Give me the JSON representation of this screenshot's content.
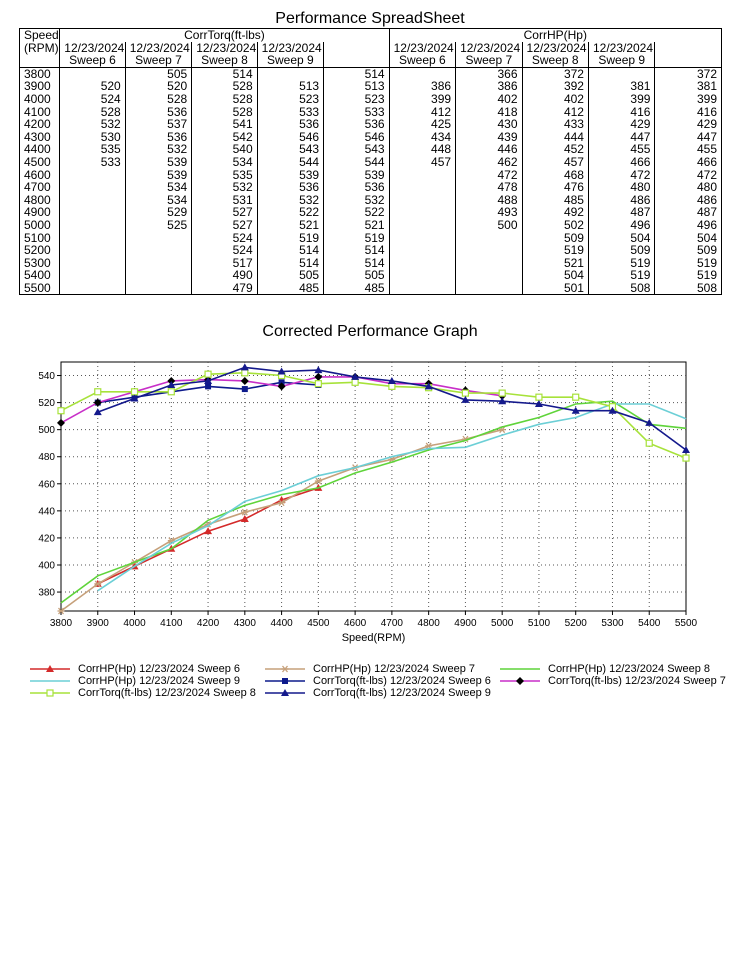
{
  "sheet": {
    "title": "Performance SpreadSheet",
    "speed_label": "Speed",
    "rpm_label": "(RPM)",
    "torque_group": "CorrTorq(ft-lbs)",
    "hp_group": "CorrHP(Hp)",
    "date": "12/23/2024",
    "sweeps": [
      "Sweep 6",
      "Sweep 7",
      "Sweep 8",
      "Sweep 9"
    ],
    "rows": [
      [
        "3800",
        "",
        "505",
        "514",
        "",
        "514",
        "",
        "366",
        "372",
        "",
        "372"
      ],
      [
        "3900",
        "520",
        "520",
        "528",
        "513",
        "513",
        "386",
        "386",
        "392",
        "381",
        "381"
      ],
      [
        "4000",
        "524",
        "528",
        "528",
        "523",
        "523",
        "399",
        "402",
        "402",
        "399",
        "399"
      ],
      [
        "4100",
        "528",
        "536",
        "528",
        "533",
        "533",
        "412",
        "418",
        "412",
        "416",
        "416"
      ],
      [
        "4200",
        "532",
        "537",
        "541",
        "536",
        "536",
        "425",
        "430",
        "433",
        "429",
        "429"
      ],
      [
        "4300",
        "530",
        "536",
        "542",
        "546",
        "546",
        "434",
        "439",
        "444",
        "447",
        "447"
      ],
      [
        "4400",
        "535",
        "532",
        "540",
        "543",
        "543",
        "448",
        "446",
        "452",
        "455",
        "455"
      ],
      [
        "4500",
        "533",
        "539",
        "534",
        "544",
        "544",
        "457",
        "462",
        "457",
        "466",
        "466"
      ],
      [
        "4600",
        "",
        "539",
        "535",
        "539",
        "539",
        "",
        "472",
        "468",
        "472",
        "472"
      ],
      [
        "4700",
        "",
        "534",
        "532",
        "536",
        "536",
        "",
        "478",
        "476",
        "480",
        "480"
      ],
      [
        "4800",
        "",
        "534",
        "531",
        "532",
        "532",
        "",
        "488",
        "485",
        "486",
        "486"
      ],
      [
        "4900",
        "",
        "529",
        "527",
        "522",
        "522",
        "",
        "493",
        "492",
        "487",
        "487"
      ],
      [
        "5000",
        "",
        "525",
        "527",
        "521",
        "521",
        "",
        "500",
        "502",
        "496",
        "496"
      ],
      [
        "5100",
        "",
        "",
        "524",
        "519",
        "519",
        "",
        "",
        "509",
        "504",
        "504"
      ],
      [
        "5200",
        "",
        "",
        "524",
        "514",
        "514",
        "",
        "",
        "519",
        "509",
        "509"
      ],
      [
        "5300",
        "",
        "",
        "517",
        "514",
        "514",
        "",
        "",
        "521",
        "519",
        "519"
      ],
      [
        "5400",
        "",
        "",
        "490",
        "505",
        "505",
        "",
        "",
        "504",
        "519",
        "519"
      ],
      [
        "5500",
        "",
        "",
        "479",
        "485",
        "485",
        "",
        "",
        "501",
        "508",
        "508"
      ]
    ]
  },
  "graph_title": "Corrected Performance Graph",
  "chart_data": {
    "type": "line",
    "title": "Corrected Performance Graph",
    "xlabel": "Speed(RPM)",
    "ylabel": "",
    "xlim": [
      3800,
      5500
    ],
    "ylim": [
      366,
      550
    ],
    "x_ticks": [
      "3800",
      "3900",
      "4000",
      "4100",
      "4200",
      "4300",
      "4400",
      "4500",
      "4600",
      "4700",
      "4800",
      "4900",
      "5000",
      "5100",
      "5200",
      "5300",
      "5400",
      "5500"
    ],
    "y_ticks": [
      "380",
      "400",
      "420",
      "440",
      "460",
      "480",
      "500",
      "520",
      "540"
    ],
    "grid": "dotted",
    "x": [
      3800,
      3900,
      4000,
      4100,
      4200,
      4300,
      4400,
      4500,
      4600,
      4700,
      4800,
      4900,
      5000,
      5100,
      5200,
      5300,
      5400,
      5500
    ],
    "series": [
      {
        "name": "CorrHP(Hp) 12/23/2024 Sweep 6",
        "color": "#d42a2a",
        "marker": "triangle",
        "values": [
          null,
          386,
          399,
          412,
          425,
          434,
          448,
          457,
          null,
          null,
          null,
          null,
          null,
          null,
          null,
          null,
          null,
          null
        ]
      },
      {
        "name": "CorrHP(Hp) 12/23/2024 Sweep 7",
        "color": "#c6a07a",
        "marker": "star",
        "values": [
          366,
          386,
          402,
          418,
          430,
          439,
          446,
          462,
          472,
          478,
          488,
          493,
          500,
          null,
          null,
          null,
          null,
          null
        ]
      },
      {
        "name": "CorrHP(Hp) 12/23/2024 Sweep 8",
        "color": "#5fd43a",
        "marker": "none",
        "values": [
          372,
          392,
          402,
          412,
          433,
          444,
          452,
          457,
          468,
          476,
          485,
          492,
          502,
          509,
          519,
          521,
          504,
          501
        ]
      },
      {
        "name": "CorrHP(Hp) 12/23/2024 Sweep 9",
        "color": "#6ccfd6",
        "marker": "none",
        "values": [
          null,
          381,
          399,
          416,
          429,
          447,
          455,
          466,
          472,
          480,
          486,
          487,
          496,
          504,
          509,
          519,
          519,
          508
        ]
      },
      {
        "name": "CorrTorq(ft-lbs) 12/23/2024 Sweep 6",
        "color": "#0d1a8c",
        "marker": "square",
        "values": [
          null,
          520,
          524,
          528,
          532,
          530,
          535,
          533,
          null,
          null,
          null,
          null,
          null,
          null,
          null,
          null,
          null,
          null
        ]
      },
      {
        "name": "CorrTorq(ft-lbs) 12/23/2024 Sweep 7",
        "color": "#c82fc8",
        "marker": "diamond",
        "values": [
          505,
          520,
          528,
          536,
          537,
          536,
          532,
          539,
          539,
          534,
          534,
          529,
          525,
          null,
          null,
          null,
          null,
          null
        ]
      },
      {
        "name": "CorrTorq(ft-lbs) 12/23/2024 Sweep 8",
        "color": "#a7e23a",
        "marker": "open-square",
        "values": [
          514,
          528,
          528,
          528,
          541,
          542,
          540,
          534,
          535,
          532,
          531,
          527,
          527,
          524,
          524,
          517,
          490,
          479
        ]
      },
      {
        "name": "CorrTorq(ft-lbs) 12/23/2024 Sweep 9",
        "color": "#14198c",
        "marker": "triangle",
        "values": [
          null,
          513,
          523,
          533,
          536,
          546,
          543,
          544,
          539,
          536,
          532,
          522,
          521,
          519,
          514,
          514,
          505,
          485
        ]
      }
    ],
    "legend_position": "bottom"
  }
}
